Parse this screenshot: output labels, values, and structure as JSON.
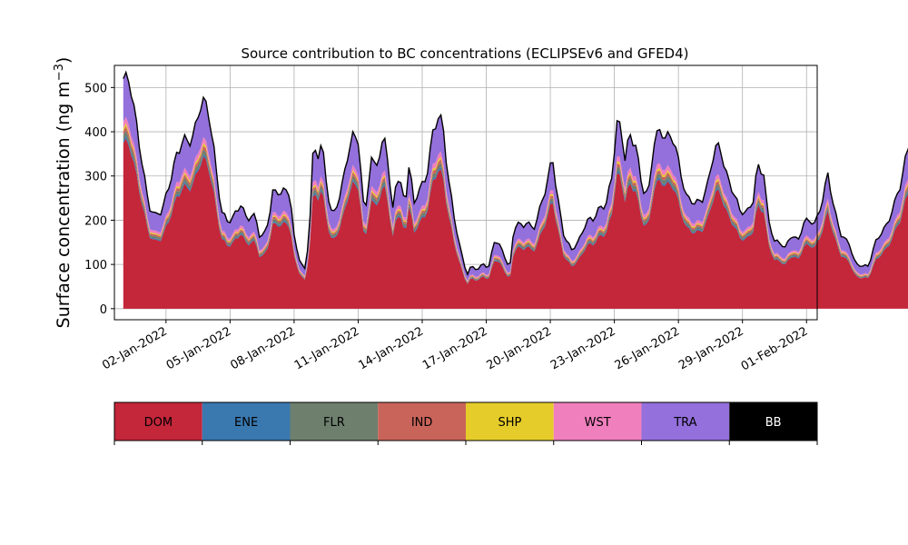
{
  "chart_data": {
    "type": "area",
    "title": "Source contribution to BC concentrations (ECLIPSEv6 and GFED4)",
    "ylabel_main": "Surface concentration (ng m",
    "ylabel_sup": "−3",
    "ylabel_close": ")",
    "xlabel": "",
    "x_start": "2021-12-31",
    "x_step_days": 0.125,
    "xlim": [
      "2021-12-30T14:00",
      "2022-02-01T12:00"
    ],
    "ylim": [
      -25,
      550
    ],
    "grid": true,
    "x_ticks": [
      {
        "date": "2022-01-02",
        "label": "02-Jan-2022"
      },
      {
        "date": "2022-01-05",
        "label": "05-Jan-2022"
      },
      {
        "date": "2022-01-08",
        "label": "08-Jan-2022"
      },
      {
        "date": "2022-01-11",
        "label": "11-Jan-2022"
      },
      {
        "date": "2022-01-14",
        "label": "14-Jan-2022"
      },
      {
        "date": "2022-01-17",
        "label": "17-Jan-2022"
      },
      {
        "date": "2022-01-20",
        "label": "20-Jan-2022"
      },
      {
        "date": "2022-01-23",
        "label": "23-Jan-2022"
      },
      {
        "date": "2022-01-26",
        "label": "26-Jan-2022"
      },
      {
        "date": "2022-01-29",
        "label": "29-Jan-2022"
      },
      {
        "date": "2022-02-01",
        "label": "01-Feb-2022"
      }
    ],
    "y_ticks": [
      {
        "value": 0,
        "label": "0"
      },
      {
        "value": 100,
        "label": "100"
      },
      {
        "value": 200,
        "label": "200"
      },
      {
        "value": 300,
        "label": "300"
      },
      {
        "value": 400,
        "label": "400"
      },
      {
        "value": 500,
        "label": "500"
      }
    ],
    "total_keypoints": [
      [
        0,
        520
      ],
      [
        0.3,
        505
      ],
      [
        0.9,
        330
      ],
      [
        1.2,
        235
      ],
      [
        1.5,
        210
      ],
      [
        1.8,
        215
      ],
      [
        2.1,
        270
      ],
      [
        2.5,
        355
      ],
      [
        2.8,
        385
      ],
      [
        3.1,
        370
      ],
      [
        3.3,
        385
      ],
      [
        3.6,
        460
      ],
      [
        3.8,
        480
      ],
      [
        4.0,
        450
      ],
      [
        4.2,
        380
      ],
      [
        4.4,
        290
      ],
      [
        4.6,
        215
      ],
      [
        4.9,
        195
      ],
      [
        5.1,
        205
      ],
      [
        5.3,
        225
      ],
      [
        5.5,
        240
      ],
      [
        5.8,
        200
      ],
      [
        6.0,
        205
      ],
      [
        6.2,
        205
      ],
      [
        6.4,
        160
      ],
      [
        6.6,
        170
      ],
      [
        6.8,
        205
      ],
      [
        7.0,
        265
      ],
      [
        7.2,
        265
      ],
      [
        7.4,
        255
      ],
      [
        7.6,
        265
      ],
      [
        7.8,
        260
      ],
      [
        8.0,
        165
      ],
      [
        8.3,
        105
      ],
      [
        8.5,
        90
      ],
      [
        8.7,
        160
      ],
      [
        8.9,
        360
      ],
      [
        9.1,
        340
      ],
      [
        9.3,
        375
      ],
      [
        9.6,
        260
      ],
      [
        9.8,
        210
      ],
      [
        10.2,
        260
      ],
      [
        10.5,
        340
      ],
      [
        10.8,
        400
      ],
      [
        11.0,
        390
      ],
      [
        11.3,
        210
      ],
      [
        11.6,
        330
      ],
      [
        11.8,
        320
      ],
      [
        12.0,
        340
      ],
      [
        12.3,
        400
      ],
      [
        12.6,
        215
      ],
      [
        12.8,
        305
      ],
      [
        13.0,
        275
      ],
      [
        13.2,
        230
      ],
      [
        13.4,
        330
      ],
      [
        13.6,
        235
      ],
      [
        13.8,
        270
      ],
      [
        14.2,
        300
      ],
      [
        14.5,
        390
      ],
      [
        14.8,
        435
      ],
      [
        15.0,
        400
      ],
      [
        15.2,
        310
      ],
      [
        15.5,
        210
      ],
      [
        15.8,
        130
      ],
      [
        16.1,
        75
      ],
      [
        16.3,
        95
      ],
      [
        16.6,
        90
      ],
      [
        16.9,
        105
      ],
      [
        17.1,
        90
      ],
      [
        17.4,
        155
      ],
      [
        17.7,
        135
      ],
      [
        17.9,
        115
      ],
      [
        18.1,
        90
      ],
      [
        18.3,
        190
      ],
      [
        18.5,
        195
      ],
      [
        18.7,
        180
      ],
      [
        18.9,
        195
      ],
      [
        19.2,
        175
      ],
      [
        19.4,
        210
      ],
      [
        19.8,
        280
      ],
      [
        20.1,
        340
      ],
      [
        20.3,
        260
      ],
      [
        20.6,
        170
      ],
      [
        21.0,
        135
      ],
      [
        21.4,
        160
      ],
      [
        21.7,
        195
      ],
      [
        22.0,
        200
      ],
      [
        22.3,
        230
      ],
      [
        22.6,
        240
      ],
      [
        22.9,
        300
      ],
      [
        23.1,
        415
      ],
      [
        23.3,
        400
      ],
      [
        23.5,
        340
      ],
      [
        23.7,
        395
      ],
      [
        24.0,
        380
      ],
      [
        24.3,
        270
      ],
      [
        24.6,
        255
      ],
      [
        24.9,
        390
      ],
      [
        25.2,
        405
      ],
      [
        25.5,
        395
      ],
      [
        25.8,
        380
      ],
      [
        26.1,
        300
      ],
      [
        26.4,
        250
      ],
      [
        26.8,
        245
      ],
      [
        27.1,
        245
      ],
      [
        27.4,
        280
      ],
      [
        27.6,
        335
      ],
      [
        27.8,
        370
      ],
      [
        28.0,
        360
      ],
      [
        28.3,
        300
      ],
      [
        28.6,
        260
      ],
      [
        28.9,
        215
      ],
      [
        29.2,
        215
      ],
      [
        29.5,
        250
      ],
      [
        29.7,
        330
      ],
      [
        30.0,
        305
      ],
      [
        30.2,
        200
      ],
      [
        30.5,
        150
      ],
      [
        30.8,
        150
      ],
      [
        31.0,
        140
      ],
      [
        31.3,
        170
      ],
      [
        31.6,
        150
      ],
      [
        31.9,
        195
      ],
      [
        32.2,
        200
      ],
      [
        32.4,
        195
      ],
      [
        32.7,
        240
      ],
      [
        33.0,
        300
      ],
      [
        33.3,
        220
      ],
      [
        33.6,
        170
      ],
      [
        34.0,
        150
      ],
      [
        34.3,
        100
      ],
      [
        34.6,
        95
      ],
      [
        34.9,
        95
      ],
      [
        35.2,
        150
      ],
      [
        35.5,
        175
      ],
      [
        35.8,
        190
      ],
      [
        36.1,
        230
      ],
      [
        36.4,
        280
      ],
      [
        36.7,
        360
      ],
      [
        36.9,
        400
      ],
      [
        37.1,
        410
      ],
      [
        37.3,
        415
      ],
      [
        37.5,
        290
      ],
      [
        37.8,
        165
      ],
      [
        38.0,
        190
      ],
      [
        38.3,
        165
      ],
      [
        38.5,
        175
      ],
      [
        38.7,
        165
      ],
      [
        38.9,
        175
      ],
      [
        39.1,
        155
      ],
      [
        39.3,
        200
      ],
      [
        39.5,
        215
      ],
      [
        39.7,
        200
      ],
      [
        39.9,
        230
      ],
      [
        40.2,
        225
      ],
      [
        40.5,
        200
      ],
      [
        40.8,
        185
      ],
      [
        41.0,
        230
      ],
      [
        41.2,
        215
      ],
      [
        41.4,
        165
      ],
      [
        41.6,
        230
      ],
      [
        41.8,
        260
      ],
      [
        42.1,
        265
      ],
      [
        42.3,
        190
      ],
      [
        42.6,
        165
      ],
      [
        42.9,
        175
      ],
      [
        43.2,
        175
      ],
      [
        43.5,
        185
      ],
      [
        43.8,
        215
      ],
      [
        44.0,
        265
      ],
      [
        44.2,
        270
      ],
      [
        44.4,
        280
      ],
      [
        44.6,
        310
      ],
      [
        44.8,
        330
      ],
      [
        45.0,
        385
      ],
      [
        45.3,
        340
      ],
      [
        45.6,
        260
      ],
      [
        45.8,
        255
      ],
      [
        46.1,
        260
      ],
      [
        46.4,
        350
      ],
      [
        46.7,
        370
      ],
      [
        47.0,
        320
      ],
      [
        47.3,
        255
      ],
      [
        47.6,
        240
      ],
      [
        47.9,
        245
      ],
      [
        48.2,
        240
      ],
      [
        48.5,
        245
      ],
      [
        48.8,
        235
      ],
      [
        49.1,
        200
      ],
      [
        49.4,
        170
      ],
      [
        49.7,
        165
      ],
      [
        50.0,
        175
      ],
      [
        50.3,
        235
      ],
      [
        50.6,
        240
      ],
      [
        50.9,
        220
      ],
      [
        51.2,
        250
      ],
      [
        51.5,
        380
      ],
      [
        51.7,
        370
      ],
      [
        51.9,
        300
      ],
      [
        52.2,
        305
      ],
      [
        52.5,
        360
      ],
      [
        52.8,
        265
      ],
      [
        53.1,
        215
      ],
      [
        53.4,
        220
      ],
      [
        53.7,
        230
      ],
      [
        54.0,
        260
      ],
      [
        54.3,
        280
      ],
      [
        54.6,
        285
      ],
      [
        54.8,
        275
      ],
      [
        55.0,
        310
      ],
      [
        55.2,
        240
      ],
      [
        55.5,
        250
      ],
      [
        55.8,
        245
      ],
      [
        56.0,
        240
      ],
      [
        56.2,
        175
      ]
    ],
    "series": [
      {
        "name": "DOM",
        "color": "#c4263a",
        "fraction": 0.72
      },
      {
        "name": "ENE",
        "color": "#3a78b0",
        "fraction": 0.012
      },
      {
        "name": "FLR",
        "color": "#6e7f6e",
        "fraction": 0.022
      },
      {
        "name": "IND",
        "color": "#c9645a",
        "fraction": 0.018
      },
      {
        "name": "SHP",
        "color": "#e6cc2a",
        "fraction": 0.012
      },
      {
        "name": "WST",
        "color": "#f07fbd",
        "fraction": 0.028
      },
      {
        "name": "TRA",
        "color": "#9370db",
        "fraction": 0.188
      },
      {
        "name": "BB",
        "color": "#000000",
        "fraction": 0.0
      }
    ],
    "legend": [
      {
        "name": "DOM",
        "color": "#c4263a",
        "text_color": "#000000"
      },
      {
        "name": "ENE",
        "color": "#3a78b0",
        "text_color": "#000000"
      },
      {
        "name": "FLR",
        "color": "#6e7f6e",
        "text_color": "#000000"
      },
      {
        "name": "IND",
        "color": "#c9645a",
        "text_color": "#000000"
      },
      {
        "name": "SHP",
        "color": "#e6cc2a",
        "text_color": "#000000"
      },
      {
        "name": "WST",
        "color": "#f07fbd",
        "text_color": "#000000"
      },
      {
        "name": "TRA",
        "color": "#9370db",
        "text_color": "#000000"
      },
      {
        "name": "BB",
        "color": "#000000",
        "text_color": "#ffffff"
      }
    ],
    "legend_placement": "bottom colorbar"
  }
}
